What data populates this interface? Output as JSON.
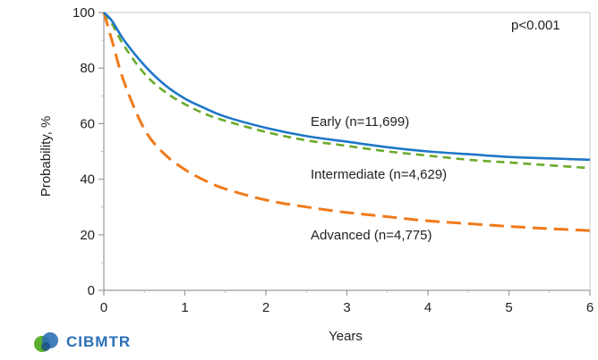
{
  "chart_data": {
    "type": "line",
    "title": "",
    "xlabel": "Years",
    "ylabel": "Probability, %",
    "xlim": [
      0,
      6
    ],
    "ylim": [
      0,
      100
    ],
    "xticks": [
      0,
      1,
      2,
      3,
      4,
      5,
      6
    ],
    "yticks": [
      0,
      20,
      40,
      60,
      80,
      100
    ],
    "grid": false,
    "annotation": "p<0.001",
    "series": [
      {
        "name": "Early (n=11,699)",
        "color": "#1f77c8",
        "style": "solid",
        "x": [
          0,
          0.1,
          0.25,
          0.5,
          0.75,
          1,
          1.25,
          1.5,
          2,
          2.5,
          3,
          3.5,
          4,
          4.5,
          5,
          5.5,
          6
        ],
        "y": [
          100,
          97,
          90,
          81,
          74,
          69,
          65.5,
          62.5,
          58.5,
          55.5,
          53.5,
          51.5,
          50,
          49,
          48,
          47.5,
          47
        ]
      },
      {
        "name": "Intermediate (n=4,629)",
        "color": "#6aaa2a",
        "style": "dashed",
        "x": [
          0,
          0.1,
          0.25,
          0.5,
          0.75,
          1,
          1.25,
          1.5,
          2,
          2.5,
          3,
          3.5,
          4,
          4.5,
          5,
          5.5,
          6
        ],
        "y": [
          100,
          96,
          88,
          78,
          71.5,
          67,
          63.5,
          61,
          57,
          54,
          52,
          50,
          48.5,
          47,
          46,
          45,
          44
        ]
      },
      {
        "name": "Advanced (n=4,775)",
        "color": "#f07a1a",
        "style": "dashed",
        "x": [
          0,
          0.1,
          0.25,
          0.5,
          0.75,
          1,
          1.25,
          1.5,
          2,
          2.5,
          3,
          3.5,
          4,
          4.5,
          5,
          5.5,
          6
        ],
        "y": [
          100,
          90,
          75,
          58,
          49,
          43.5,
          39.5,
          36.5,
          32.5,
          30,
          28,
          26.5,
          25,
          24,
          23,
          22.2,
          21.5
        ]
      }
    ]
  },
  "logo": {
    "text": "CIBMTR"
  }
}
